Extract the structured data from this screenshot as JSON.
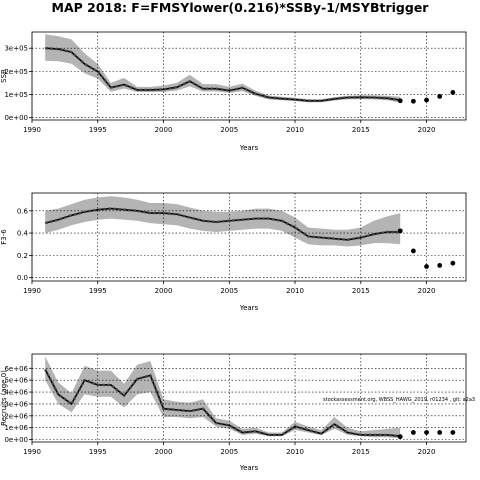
{
  "title": "MAP 2018: F=FMSYlower(0.216)*SSBy-1/MSYBtrigger",
  "colors": {
    "band": "#b4b4b4",
    "line": "#000000",
    "grid": "#000000",
    "frame": "#000000"
  },
  "chart_data": [
    {
      "type": "line",
      "name": "ssb-panel",
      "xlabel": "Years",
      "ylabel": "SSB",
      "xlim": [
        1990,
        2023
      ],
      "ylim": [
        -10000,
        370000
      ],
      "grid": true,
      "x_ticks": [
        1990,
        1995,
        2000,
        2005,
        2010,
        2015,
        2020
      ],
      "x_tick_labels": [
        "1990",
        "1995",
        "2000",
        "2005",
        "2010",
        "2015",
        "2020"
      ],
      "y_ticks": [
        0,
        100000,
        200000,
        300000
      ],
      "y_tick_labels": [
        "0e+00",
        "1e+05",
        "2e+05",
        "3e+05"
      ],
      "x": [
        1991,
        1992,
        1993,
        1994,
        1995,
        1996,
        1997,
        1998,
        1999,
        2000,
        2001,
        2002,
        2003,
        2004,
        2005,
        2006,
        2007,
        2008,
        2009,
        2010,
        2011,
        2012,
        2013,
        2014,
        2015,
        2016,
        2017,
        2018
      ],
      "values": [
        300000,
        296000,
        283000,
        232000,
        199000,
        130000,
        143000,
        120000,
        120000,
        122000,
        131000,
        157000,
        125000,
        125000,
        117000,
        129000,
        103000,
        87000,
        82000,
        78000,
        73000,
        73000,
        81000,
        87000,
        88000,
        87000,
        84000,
        76000
      ],
      "lower": [
        245000,
        244000,
        233000,
        192000,
        168000,
        112000,
        126000,
        111000,
        111000,
        111000,
        117000,
        135000,
        113000,
        113000,
        107000,
        114000,
        94000,
        79000,
        75000,
        72000,
        66000,
        67000,
        74000,
        79000,
        80000,
        79000,
        75000,
        65000
      ],
      "upper": [
        360000,
        352000,
        338000,
        278000,
        232000,
        150000,
        172000,
        133000,
        133000,
        139000,
        150000,
        185000,
        145000,
        145000,
        134000,
        147000,
        116000,
        96000,
        90000,
        86000,
        80000,
        80000,
        89000,
        95000,
        97000,
        97000,
        95000,
        90000
      ],
      "projection_x": [
        2018,
        2019,
        2020,
        2021,
        2022
      ],
      "projection_values": [
        73000,
        71000,
        76000,
        92000,
        109000
      ]
    },
    {
      "type": "line",
      "name": "f-panel",
      "xlabel": "Years",
      "ylabel": "F3-6",
      "xlim": [
        1990,
        2023
      ],
      "ylim": [
        -0.03,
        0.76
      ],
      "grid": true,
      "x_ticks": [
        1990,
        1995,
        2000,
        2005,
        2010,
        2015,
        2020
      ],
      "x_tick_labels": [
        "1990",
        "1995",
        "2000",
        "2005",
        "2010",
        "2015",
        "2020"
      ],
      "y_ticks": [
        0.0,
        0.2,
        0.4,
        0.6
      ],
      "y_tick_labels": [
        "0.0",
        "0.2",
        "0.4",
        "0.6"
      ],
      "x": [
        1991,
        1992,
        1993,
        1994,
        1995,
        1996,
        1997,
        1998,
        1999,
        2000,
        2001,
        2002,
        2003,
        2004,
        2005,
        2006,
        2007,
        2008,
        2009,
        2010,
        2011,
        2012,
        2013,
        2014,
        2015,
        2016,
        2017,
        2018
      ],
      "values": [
        0.49,
        0.52,
        0.56,
        0.59,
        0.61,
        0.62,
        0.61,
        0.6,
        0.58,
        0.58,
        0.57,
        0.54,
        0.51,
        0.5,
        0.51,
        0.52,
        0.53,
        0.53,
        0.51,
        0.45,
        0.37,
        0.36,
        0.35,
        0.34,
        0.36,
        0.39,
        0.41,
        0.41
      ],
      "lower": [
        0.4,
        0.43,
        0.47,
        0.5,
        0.52,
        0.53,
        0.52,
        0.51,
        0.49,
        0.48,
        0.47,
        0.44,
        0.42,
        0.41,
        0.42,
        0.43,
        0.44,
        0.44,
        0.42,
        0.36,
        0.3,
        0.29,
        0.29,
        0.28,
        0.29,
        0.31,
        0.31,
        0.3
      ],
      "upper": [
        0.6,
        0.62,
        0.66,
        0.7,
        0.72,
        0.73,
        0.72,
        0.7,
        0.67,
        0.67,
        0.66,
        0.63,
        0.6,
        0.59,
        0.59,
        0.6,
        0.62,
        0.62,
        0.6,
        0.54,
        0.45,
        0.44,
        0.43,
        0.43,
        0.45,
        0.51,
        0.55,
        0.58
      ],
      "projection_x": [
        2018,
        2019,
        2020,
        2021,
        2022
      ],
      "projection_values": [
        0.42,
        0.24,
        0.1,
        0.11,
        0.13
      ]
    },
    {
      "type": "line",
      "name": "recruitment-panel",
      "xlabel": "Years",
      "ylabel": "Recruits (age 0)",
      "xlim": [
        1990,
        2023
      ],
      "ylim": [
        -200000,
        7200000
      ],
      "grid": true,
      "x_ticks": [
        1990,
        1995,
        2000,
        2005,
        2010,
        2015,
        2020
      ],
      "x_tick_labels": [
        "1990",
        "1995",
        "2000",
        "2005",
        "2010",
        "2015",
        "2020"
      ],
      "y_ticks": [
        0,
        1000000,
        2000000,
        3000000,
        4000000,
        5000000,
        6000000
      ],
      "y_tick_labels": [
        "0e+00",
        "1e+06",
        "2e+06",
        "3e+06",
        "4e+06",
        "5e+06",
        "6e+06"
      ],
      "x": [
        1991,
        1992,
        1993,
        1994,
        1995,
        1996,
        1997,
        1998,
        1999,
        2000,
        2001,
        2002,
        2003,
        2004,
        2005,
        2006,
        2007,
        2008,
        2009,
        2010,
        2011,
        2012,
        2013,
        2014,
        2015,
        2016,
        2017,
        2018
      ],
      "values": [
        5900000,
        3800000,
        3000000,
        5000000,
        4600000,
        4600000,
        3700000,
        5100000,
        5400000,
        2600000,
        2500000,
        2400000,
        2600000,
        1400000,
        1200000,
        600000,
        700000,
        400000,
        400000,
        1100000,
        800000,
        500000,
        1300000,
        600000,
        400000,
        400000,
        400000,
        300000
      ],
      "lower": [
        5000000,
        3000000,
        2300000,
        3800000,
        3600000,
        3600000,
        2700000,
        3800000,
        4000000,
        1900000,
        1900000,
        1800000,
        1900000,
        1100000,
        900000,
        400000,
        500000,
        300000,
        300000,
        800000,
        600000,
        400000,
        900000,
        400000,
        300000,
        200000,
        200000,
        100000
      ],
      "upper": [
        7000000,
        4800000,
        3900000,
        6200000,
        5800000,
        5800000,
        4700000,
        6300000,
        6600000,
        3400000,
        3200000,
        3100000,
        3400000,
        1800000,
        1600000,
        900000,
        1000000,
        600000,
        600000,
        1500000,
        1100000,
        800000,
        1900000,
        1000000,
        700000,
        800000,
        900000,
        1000000
      ],
      "projection_x": [
        2018,
        2019,
        2020,
        2021,
        2022
      ],
      "projection_values": [
        250000,
        600000,
        600000,
        600000,
        600000
      ],
      "annotation": "stockassessment.org, WBSS_HAWG_2019, r01234 , git: a2a3"
    }
  ]
}
